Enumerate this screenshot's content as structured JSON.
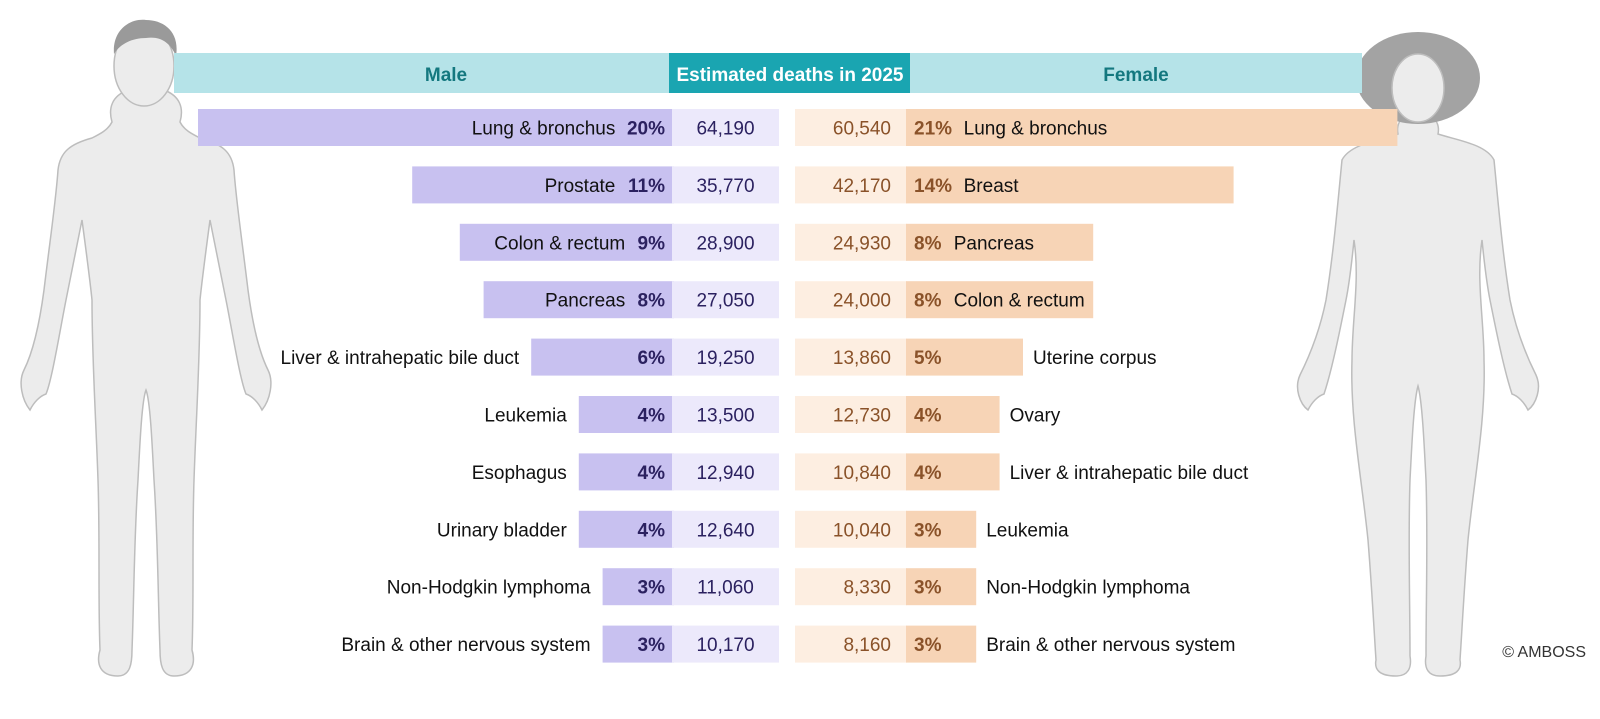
{
  "header": {
    "male_label": "Male",
    "center_label": "Estimated deaths in 2025",
    "female_label": "Female"
  },
  "copyright": "© AMBOSS",
  "colors": {
    "header_light": "#b5e3e8",
    "header_dark": "#1aa5b1",
    "header_text_dark": "#14787f",
    "male_bar": "#c8c1f0",
    "male_count_bg": "#ece9fb",
    "male_text": "#2b2160",
    "female_bar": "#f7d4b6",
    "female_count_bg": "#fdeee1",
    "female_text": "#8a5229",
    "figure_fill": "#ececec",
    "figure_stroke": "#bdbdbd"
  },
  "chart_data": {
    "type": "bar",
    "title": "Estimated deaths in 2025",
    "layout": "back-to-back horizontal bars",
    "series": [
      {
        "name": "Male",
        "categories": [
          "Lung & bronchus",
          "Prostate",
          "Colon & rectum",
          "Pancreas",
          "Liver & intrahepatic bile duct",
          "Leukemia",
          "Esophagus",
          "Urinary bladder",
          "Non-Hodgkin lymphoma",
          "Brain & other nervous system"
        ],
        "percent_labels": [
          "20%",
          "11%",
          "9%",
          "8%",
          "6%",
          "4%",
          "4%",
          "4%",
          "3%",
          "3%"
        ],
        "percent_values": [
          20,
          11,
          9,
          8,
          6,
          4,
          4,
          4,
          3,
          3
        ],
        "count_labels": [
          "64,190",
          "35,770",
          "28,900",
          "27,050",
          "19,250",
          "13,500",
          "12,940",
          "12,640",
          "11,060",
          "10,170"
        ],
        "counts": [
          64190,
          35770,
          28900,
          27050,
          19250,
          13500,
          12940,
          12640,
          11060,
          10170
        ]
      },
      {
        "name": "Female",
        "categories": [
          "Lung & bronchus",
          "Breast",
          "Pancreas",
          "Colon & rectum",
          "Uterine corpus",
          "Ovary",
          "Liver & intrahepatic bile duct",
          "Leukemia",
          "Non-Hodgkin lymphoma",
          "Brain & other nervous system"
        ],
        "percent_labels": [
          "21%",
          "14%",
          "8%",
          "8%",
          "5%",
          "4%",
          "4%",
          "3%",
          "3%",
          "3%"
        ],
        "percent_values": [
          21,
          14,
          8,
          8,
          5,
          4,
          4,
          3,
          3,
          3
        ],
        "count_labels": [
          "60,540",
          "42,170",
          "24,930",
          "24,000",
          "13,860",
          "12,730",
          "10,840",
          "10,040",
          "8,330",
          "8,160"
        ],
        "counts": [
          60540,
          42170,
          24930,
          24000,
          13860,
          12730,
          10840,
          10040,
          8330,
          8160
        ]
      }
    ]
  }
}
